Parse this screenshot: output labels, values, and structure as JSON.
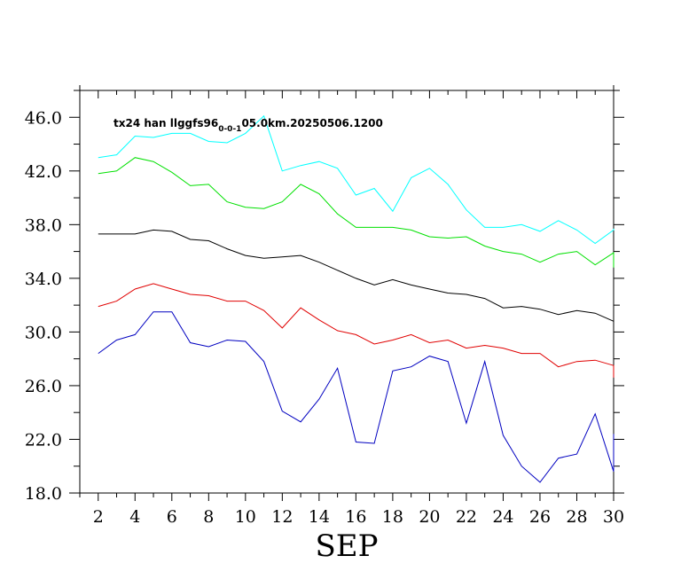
{
  "chart_data": {
    "type": "line",
    "title": {
      "pre": "tx24 han llggfs96",
      "sub": "0-0-1",
      "post": "05.0km.20250506.1200"
    },
    "xlabel": "SEP",
    "ylabel": "",
    "xlim": [
      1,
      30
    ],
    "ylim": [
      18,
      48
    ],
    "x_ticks": [
      2,
      4,
      6,
      8,
      10,
      12,
      14,
      16,
      18,
      20,
      22,
      24,
      26,
      28,
      30
    ],
    "y_ticks": [
      18,
      22,
      26,
      30,
      34,
      38,
      42,
      46
    ],
    "y_tick_labels": [
      "18.0",
      "22.0",
      "26.0",
      "30.0",
      "34.0",
      "38.0",
      "42.0",
      "46.0"
    ],
    "grid": false,
    "x": [
      2,
      3,
      4,
      5,
      6,
      7,
      8,
      9,
      10,
      11,
      12,
      13,
      14,
      15,
      16,
      17,
      18,
      19,
      20,
      21,
      22,
      23,
      24,
      25,
      26,
      27,
      28,
      29,
      30,
      31
    ],
    "series": [
      {
        "color": "#00ffff",
        "values": [
          43.0,
          43.2,
          44.6,
          44.5,
          44.8,
          44.8,
          44.2,
          44.1,
          44.8,
          46.1,
          42.0,
          42.4,
          42.7,
          42.2,
          40.2,
          40.7,
          39.0,
          41.5,
          42.2,
          41.0,
          39.1,
          37.8,
          37.8,
          38.0,
          37.5,
          38.3,
          37.6,
          36.6,
          37.6,
          37.7
        ]
      },
      {
        "color": "#00e000",
        "values": [
          41.8,
          42.0,
          43.0,
          42.7,
          41.9,
          40.9,
          41.0,
          39.7,
          39.3,
          39.2,
          39.7,
          41.0,
          40.3,
          38.8,
          37.8,
          37.8,
          37.8,
          37.6,
          37.1,
          37.0,
          37.1,
          36.4,
          36.0,
          35.8,
          35.2,
          35.8,
          36.0,
          35.0,
          35.9,
          34.8
        ]
      },
      {
        "color": "#000000",
        "values": [
          37.3,
          37.3,
          37.3,
          37.6,
          37.5,
          36.9,
          36.8,
          36.2,
          35.7,
          35.5,
          35.6,
          35.7,
          35.2,
          34.6,
          34.0,
          33.5,
          33.9,
          33.5,
          33.2,
          32.9,
          32.8,
          32.5,
          31.8,
          31.9,
          31.7,
          31.3,
          31.6,
          31.4,
          30.8,
          30.6
        ]
      },
      {
        "color": "#e00000",
        "values": [
          31.9,
          32.3,
          33.2,
          33.6,
          33.2,
          32.8,
          32.7,
          32.3,
          32.3,
          31.6,
          30.3,
          31.8,
          30.9,
          30.1,
          29.8,
          29.1,
          29.4,
          29.8,
          29.2,
          29.4,
          28.8,
          29.0,
          28.8,
          28.4,
          28.4,
          27.4,
          27.8,
          27.9,
          27.5,
          26.6
        ]
      },
      {
        "color": "#0000c0",
        "values": [
          28.4,
          29.4,
          29.8,
          31.5,
          31.5,
          29.2,
          28.9,
          29.4,
          29.3,
          27.8,
          24.1,
          23.3,
          25.0,
          27.3,
          21.8,
          21.7,
          27.1,
          27.4,
          28.2,
          27.8,
          23.2,
          27.8,
          22.3,
          20.0,
          18.8,
          20.6,
          20.9,
          23.9,
          19.6,
          22.4
        ]
      }
    ]
  }
}
